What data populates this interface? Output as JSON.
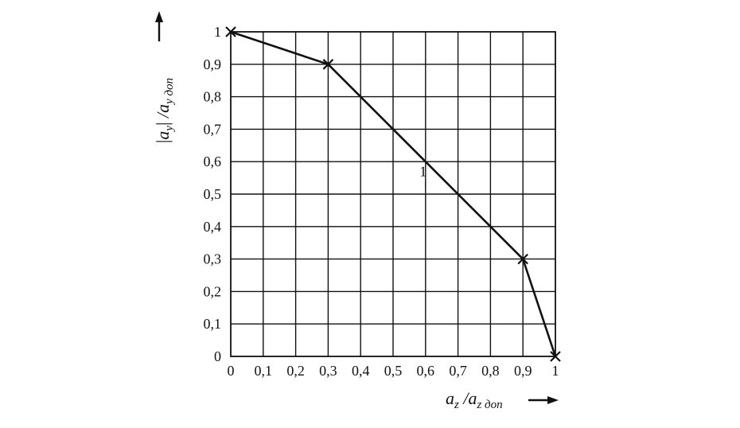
{
  "chart_data": {
    "type": "line",
    "x_ticks": [
      "0",
      "0,1",
      "0,2",
      "0,3",
      "0,4",
      "0,5",
      "0,6",
      "0,7",
      "0,8",
      "0,9",
      "1"
    ],
    "y_ticks": [
      "0",
      "0,1",
      "0,2",
      "0,3",
      "0,4",
      "0,5",
      "0,6",
      "0,7",
      "0,8",
      "0,9",
      "1"
    ],
    "xlim": [
      0,
      1
    ],
    "ylim": [
      0,
      1
    ],
    "grid": true,
    "xlabel": {
      "a1": "a",
      "s1": "z",
      "sep": " /",
      "a2": "a",
      "s2": "z дon"
    },
    "ylabel": {
      "bar_left": "|",
      "a1": "a",
      "s1": "y",
      "bar_right": "|",
      "sep": " /",
      "a2": "a",
      "s2": "y дon"
    },
    "series": [
      {
        "label": "1",
        "label_at": [
          0.6,
          0.55
        ],
        "x": [
          0,
          0.3,
          0.9,
          1
        ],
        "y": [
          1,
          0.9,
          0.3,
          0
        ]
      }
    ],
    "markers": [
      [
        0,
        1
      ],
      [
        0.3,
        0.9
      ],
      [
        0.9,
        0.3
      ],
      [
        1,
        0
      ]
    ]
  }
}
